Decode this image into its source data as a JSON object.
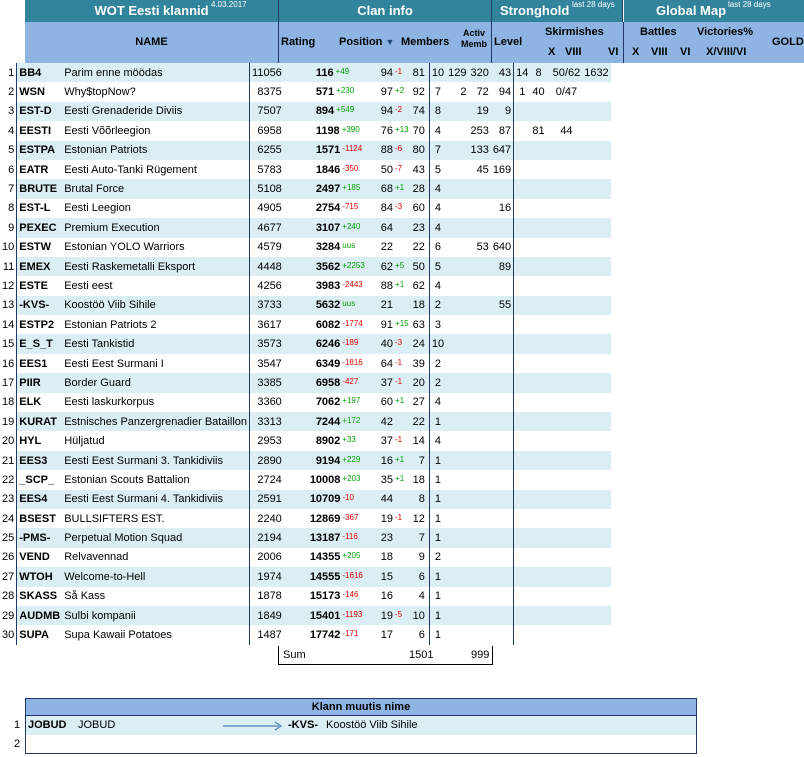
{
  "header": {
    "title": "WOT Eesti klannid",
    "date": "4.03.2017",
    "clan_info": "Clan info",
    "stronghold": "Stronghold",
    "global_map": "Global Map",
    "last28_a": "last 28 days",
    "last28_b": "last 28 days"
  },
  "columns": {
    "name": "NAME",
    "rating": "Rating",
    "position": "Position",
    "members": "Members",
    "activ": "Activ",
    "memb": "Memb",
    "level": "Level",
    "skirmishes": "Skirmishes",
    "x": "X",
    "viii": "VIII",
    "vi": "VI",
    "battles": "Battles",
    "victories": "Victories%",
    "gm_x": "X",
    "gm_viii": "VIII",
    "gm_vi": "VI",
    "xviiivi": "X/VIII/VI",
    "gold": "GOLD"
  },
  "rows": [
    {
      "n": "1",
      "tag": "BB4",
      "name": "Parim enne möödas",
      "rating": "11056",
      "pos": "116",
      "pd": "+49",
      "mem": "94",
      "md": "-1",
      "act": "81",
      "lvl": "10",
      "sx": "129",
      "sviii": "320",
      "svi": "43",
      "gx": "14",
      "gviii": "8",
      "gvi": "",
      "vic": "50/62",
      "gold": "1632"
    },
    {
      "n": "2",
      "tag": "WSN",
      "name": "Why$topNow?",
      "rating": "8375",
      "pos": "571",
      "pd": "+230",
      "mem": "97",
      "md": "+2",
      "act": "92",
      "lvl": "7",
      "sx": "2",
      "sviii": "72",
      "svi": "94",
      "gx": "1",
      "gviii": "40",
      "gvi": "",
      "vic": "0/47",
      "gold": ""
    },
    {
      "n": "3",
      "tag": "EST-D",
      "name": "Eesti Grenaderide Diviis",
      "rating": "7507",
      "pos": "894",
      "pd": "+549",
      "mem": "94",
      "md": "-2",
      "act": "74",
      "lvl": "8",
      "sx": "",
      "sviii": "19",
      "svi": "9",
      "gx": "",
      "gviii": "",
      "gvi": "",
      "vic": "",
      "gold": ""
    },
    {
      "n": "4",
      "tag": "EESTI",
      "name": "Eesti Võõrleegion",
      "rating": "6958",
      "pos": "1198",
      "pd": "+390",
      "mem": "76",
      "md": "+13",
      "act": "70",
      "lvl": "4",
      "sx": "",
      "sviii": "253",
      "svi": "87",
      "gx": "",
      "gviii": "81",
      "gvi": "",
      "vic": "44",
      "gold": ""
    },
    {
      "n": "5",
      "tag": "ESTPA",
      "name": "Estonian Patriots",
      "rating": "6255",
      "pos": "1571",
      "pd": "-1124",
      "mem": "88",
      "md": "-6",
      "act": "80",
      "lvl": "7",
      "sx": "",
      "sviii": "133",
      "svi": "647",
      "gx": "",
      "gviii": "",
      "gvi": "",
      "vic": "",
      "gold": ""
    },
    {
      "n": "6",
      "tag": "EATR",
      "name": "Eesti Auto-Tanki Rügement",
      "rating": "5783",
      "pos": "1846",
      "pd": "-350",
      "mem": "50",
      "md": "-7",
      "act": "43",
      "lvl": "5",
      "sx": "",
      "sviii": "45",
      "svi": "169",
      "gx": "",
      "gviii": "",
      "gvi": "",
      "vic": "",
      "gold": ""
    },
    {
      "n": "7",
      "tag": "BRUTE",
      "name": "Brutal Force",
      "rating": "5108",
      "pos": "2497",
      "pd": "+185",
      "mem": "68",
      "md": "+1",
      "act": "28",
      "lvl": "4",
      "sx": "",
      "sviii": "",
      "svi": "",
      "gx": "",
      "gviii": "",
      "gvi": "",
      "vic": "",
      "gold": ""
    },
    {
      "n": "8",
      "tag": "EST-L",
      "name": "Eesti Leegion",
      "rating": "4905",
      "pos": "2754",
      "pd": "-715",
      "mem": "84",
      "md": "-3",
      "act": "60",
      "lvl": "4",
      "sx": "",
      "sviii": "",
      "svi": "16",
      "gx": "",
      "gviii": "",
      "gvi": "",
      "vic": "",
      "gold": ""
    },
    {
      "n": "9",
      "tag": "PEXEC",
      "name": "Premium Execution",
      "rating": "4677",
      "pos": "3107",
      "pd": "+240",
      "mem": "64",
      "md": "",
      "act": "23",
      "lvl": "4",
      "sx": "",
      "sviii": "",
      "svi": "",
      "gx": "",
      "gviii": "",
      "gvi": "",
      "vic": "",
      "gold": ""
    },
    {
      "n": "10",
      "tag": "ESTW",
      "name": "Estonian YOLO Warriors",
      "rating": "4579",
      "pos": "3284",
      "pd": "uus",
      "mem": "22",
      "md": "",
      "act": "22",
      "lvl": "6",
      "sx": "",
      "sviii": "53",
      "svi": "640",
      "gx": "",
      "gviii": "",
      "gvi": "",
      "vic": "",
      "gold": ""
    },
    {
      "n": "11",
      "tag": "EMEX",
      "name": "Eesti Raskemetalli Eksport",
      "rating": "4448",
      "pos": "3562",
      "pd": "+2253",
      "mem": "62",
      "md": "+5",
      "act": "50",
      "lvl": "5",
      "sx": "",
      "sviii": "",
      "svi": "89",
      "gx": "",
      "gviii": "",
      "gvi": "",
      "vic": "",
      "gold": ""
    },
    {
      "n": "12",
      "tag": "ESTE",
      "name": "Eesti eest",
      "rating": "4256",
      "pos": "3983",
      "pd": "-2443",
      "mem": "88",
      "md": "+1",
      "act": "62",
      "lvl": "4",
      "sx": "",
      "sviii": "",
      "svi": "",
      "gx": "",
      "gviii": "",
      "gvi": "",
      "vic": "",
      "gold": ""
    },
    {
      "n": "13",
      "tag": "-KVS-",
      "name": "Koostöö Viib Sihile",
      "rating": "3733",
      "pos": "5632",
      "pd": "uus",
      "mem": "21",
      "md": "",
      "act": "18",
      "lvl": "2",
      "sx": "",
      "sviii": "",
      "svi": "55",
      "gx": "",
      "gviii": "",
      "gvi": "",
      "vic": "",
      "gold": ""
    },
    {
      "n": "14",
      "tag": "ESTP2",
      "name": "Estonian Patriots 2",
      "rating": "3617",
      "pos": "6082",
      "pd": "-1774",
      "mem": "91",
      "md": "+15",
      "act": "63",
      "lvl": "3",
      "sx": "",
      "sviii": "",
      "svi": "",
      "gx": "",
      "gviii": "",
      "gvi": "",
      "vic": "",
      "gold": ""
    },
    {
      "n": "15",
      "tag": "E_S_T",
      "name": "Eesti Tankistid",
      "rating": "3573",
      "pos": "6246",
      "pd": "-189",
      "mem": "40",
      "md": "-3",
      "act": "24",
      "lvl": "10",
      "sx": "",
      "sviii": "",
      "svi": "",
      "gx": "",
      "gviii": "",
      "gvi": "",
      "vic": "",
      "gold": ""
    },
    {
      "n": "16",
      "tag": "EES1",
      "name": "Eesti Eest Surmani I",
      "rating": "3547",
      "pos": "6349",
      "pd": "-1816",
      "mem": "64",
      "md": "-1",
      "act": "39",
      "lvl": "2",
      "sx": "",
      "sviii": "",
      "svi": "",
      "gx": "",
      "gviii": "",
      "gvi": "",
      "vic": "",
      "gold": ""
    },
    {
      "n": "17",
      "tag": "PIIR",
      "name": "Border Guard",
      "rating": "3385",
      "pos": "6958",
      "pd": "-427",
      "mem": "37",
      "md": "-1",
      "act": "20",
      "lvl": "2",
      "sx": "",
      "sviii": "",
      "svi": "",
      "gx": "",
      "gviii": "",
      "gvi": "",
      "vic": "",
      "gold": ""
    },
    {
      "n": "18",
      "tag": "ELK",
      "name": "Eesti laskurkorpus",
      "rating": "3360",
      "pos": "7062",
      "pd": "+197",
      "mem": "60",
      "md": "+1",
      "act": "27",
      "lvl": "4",
      "sx": "",
      "sviii": "",
      "svi": "",
      "gx": "",
      "gviii": "",
      "gvi": "",
      "vic": "",
      "gold": ""
    },
    {
      "n": "19",
      "tag": "KURAT",
      "name": "Estnisches Panzergrenadier Bataillon",
      "rating": "3313",
      "pos": "7244",
      "pd": "+172",
      "mem": "42",
      "md": "",
      "act": "22",
      "lvl": "1",
      "sx": "",
      "sviii": "",
      "svi": "",
      "gx": "",
      "gviii": "",
      "gvi": "",
      "vic": "",
      "gold": ""
    },
    {
      "n": "20",
      "tag": "HYL",
      "name": "Hüljatud",
      "rating": "2953",
      "pos": "8902",
      "pd": "+33",
      "mem": "37",
      "md": "-1",
      "act": "14",
      "lvl": "4",
      "sx": "",
      "sviii": "",
      "svi": "",
      "gx": "",
      "gviii": "",
      "gvi": "",
      "vic": "",
      "gold": ""
    },
    {
      "n": "21",
      "tag": "EES3",
      "name": "Eesti Eest Surmani 3. Tankidiviis",
      "rating": "2890",
      "pos": "9194",
      "pd": "+229",
      "mem": "16",
      "md": "+1",
      "act": "7",
      "lvl": "1",
      "sx": "",
      "sviii": "",
      "svi": "",
      "gx": "",
      "gviii": "",
      "gvi": "",
      "vic": "",
      "gold": ""
    },
    {
      "n": "22",
      "tag": "_SCP_",
      "name": "Estonian Scouts Battalion",
      "rating": "2724",
      "pos": "10008",
      "pd": "+203",
      "mem": "35",
      "md": "+1",
      "act": "18",
      "lvl": "1",
      "sx": "",
      "sviii": "",
      "svi": "",
      "gx": "",
      "gviii": "",
      "gvi": "",
      "vic": "",
      "gold": ""
    },
    {
      "n": "23",
      "tag": "EES4",
      "name": "Eesti Eest Surmani 4. Tankidiviis",
      "rating": "2591",
      "pos": "10709",
      "pd": "-10",
      "mem": "44",
      "md": "",
      "act": "8",
      "lvl": "1",
      "sx": "",
      "sviii": "",
      "svi": "",
      "gx": "",
      "gviii": "",
      "gvi": "",
      "vic": "",
      "gold": ""
    },
    {
      "n": "24",
      "tag": "BSEST",
      "name": "BULLSIFTERS EST.",
      "rating": "2240",
      "pos": "12869",
      "pd": "-367",
      "mem": "19",
      "md": "-1",
      "act": "12",
      "lvl": "1",
      "sx": "",
      "sviii": "",
      "svi": "",
      "gx": "",
      "gviii": "",
      "gvi": "",
      "vic": "",
      "gold": ""
    },
    {
      "n": "25",
      "tag": "-PMS-",
      "name": "Perpetual Motion Squad",
      "rating": "2194",
      "pos": "13187",
      "pd": "-116",
      "mem": "23",
      "md": "",
      "act": "7",
      "lvl": "1",
      "sx": "",
      "sviii": "",
      "svi": "",
      "gx": "",
      "gviii": "",
      "gvi": "",
      "vic": "",
      "gold": ""
    },
    {
      "n": "26",
      "tag": "VEND",
      "name": "Relvavennad",
      "rating": "2006",
      "pos": "14355",
      "pd": "+205",
      "mem": "18",
      "md": "",
      "act": "9",
      "lvl": "2",
      "sx": "",
      "sviii": "",
      "svi": "",
      "gx": "",
      "gviii": "",
      "gvi": "",
      "vic": "",
      "gold": ""
    },
    {
      "n": "27",
      "tag": "WTOH",
      "name": "Welcome-to-Hell",
      "rating": "1974",
      "pos": "14555",
      "pd": "-1616",
      "mem": "15",
      "md": "",
      "act": "6",
      "lvl": "1",
      "sx": "",
      "sviii": "",
      "svi": "",
      "gx": "",
      "gviii": "",
      "gvi": "",
      "vic": "",
      "gold": ""
    },
    {
      "n": "28",
      "tag": "SKASS",
      "name": "Så Kass",
      "rating": "1878",
      "pos": "15173",
      "pd": "-146",
      "mem": "16",
      "md": "",
      "act": "4",
      "lvl": "1",
      "sx": "",
      "sviii": "",
      "svi": "",
      "gx": "",
      "gviii": "",
      "gvi": "",
      "vic": "",
      "gold": ""
    },
    {
      "n": "29",
      "tag": "AUDMB",
      "name": "Sulbi kompanii",
      "rating": "1849",
      "pos": "15401",
      "pd": "-1193",
      "mem": "19",
      "md": "-5",
      "act": "10",
      "lvl": "1",
      "sx": "",
      "sviii": "",
      "svi": "",
      "gx": "",
      "gviii": "",
      "gvi": "",
      "vic": "",
      "gold": ""
    },
    {
      "n": "30",
      "tag": "SUPA",
      "name": "Supa Kawaii Potatoes",
      "rating": "1487",
      "pos": "17742",
      "pd": "-171",
      "mem": "17",
      "md": "",
      "act": "6",
      "lvl": "1",
      "sx": "",
      "sviii": "",
      "svi": "",
      "gx": "",
      "gviii": "",
      "gvi": "",
      "vic": "",
      "gold": ""
    }
  ],
  "sum": {
    "label": "Sum",
    "members": "1501",
    "activ": "999"
  },
  "rename": {
    "title": "Klann muutis nime",
    "rows": [
      {
        "n": "1",
        "old_tag": "JOBUD",
        "old_name": "JOBUD",
        "new_tag": "-KVS-",
        "new_name": "Koostöö Viib Sihile"
      },
      {
        "n": "2",
        "old_tag": "",
        "old_name": "",
        "new_tag": "",
        "new_name": ""
      }
    ]
  },
  "colors": {
    "teal": "#31849b",
    "lightblue": "#8db4e2",
    "rowtint": "#daeef3",
    "up": "#00a000",
    "down": "#e00000"
  }
}
